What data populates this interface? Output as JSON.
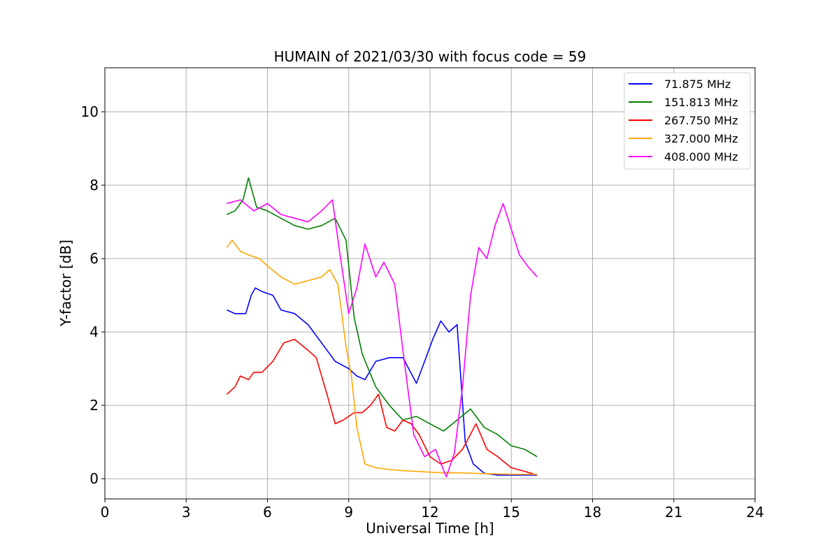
{
  "chart_data": {
    "type": "line",
    "title": "HUMAIN of 2021/03/30 with focus code = 59",
    "xlabel": "Universal Time [h]",
    "ylabel": "Y-factor [dB]",
    "xlim": [
      0,
      24
    ],
    "ylim": [
      -0.55,
      11.2
    ],
    "xticks": [
      0,
      3,
      6,
      9,
      12,
      15,
      18,
      21,
      24
    ],
    "yticks": [
      0,
      2,
      4,
      6,
      8,
      10
    ],
    "grid": true,
    "legend_position": "top-right",
    "series": [
      {
        "name": "  71.875 MHz",
        "color": "#0000ff",
        "x": [
          4.5,
          4.8,
          5.2,
          5.4,
          5.55,
          5.8,
          6.2,
          6.5,
          7.0,
          7.5,
          8.0,
          8.5,
          9.0,
          9.3,
          9.6,
          10.0,
          10.5,
          11.0,
          11.5,
          11.8,
          12.1,
          12.4,
          12.7,
          13.0,
          13.3,
          13.6,
          14.0,
          14.5,
          15.0,
          15.5,
          15.95
        ],
        "y": [
          4.6,
          4.5,
          4.5,
          5.0,
          5.2,
          5.1,
          5.0,
          4.6,
          4.5,
          4.2,
          3.7,
          3.2,
          3.0,
          2.8,
          2.7,
          3.2,
          3.3,
          3.3,
          2.6,
          3.2,
          3.8,
          4.3,
          4.0,
          4.2,
          1.0,
          0.4,
          0.15,
          0.1,
          0.1,
          0.1,
          0.1
        ]
      },
      {
        "name": "151.813 MHz",
        "color": "#008000",
        "x": [
          4.5,
          4.8,
          5.1,
          5.3,
          5.6,
          6.0,
          6.5,
          7.0,
          7.5,
          8.0,
          8.5,
          8.9,
          9.2,
          9.5,
          10.0,
          10.5,
          11.0,
          11.5,
          12.0,
          12.5,
          13.0,
          13.5,
          14.0,
          14.5,
          15.0,
          15.5,
          15.95
        ],
        "y": [
          7.2,
          7.3,
          7.6,
          8.2,
          7.4,
          7.3,
          7.1,
          6.9,
          6.8,
          6.9,
          7.1,
          6.5,
          4.4,
          3.4,
          2.5,
          2.0,
          1.6,
          1.7,
          1.5,
          1.3,
          1.6,
          1.9,
          1.4,
          1.2,
          0.9,
          0.8,
          0.6
        ]
      },
      {
        "name": "267.750 MHz",
        "color": "#ff0000",
        "x": [
          4.5,
          4.8,
          5.0,
          5.3,
          5.5,
          5.8,
          6.2,
          6.6,
          7.0,
          7.5,
          7.8,
          8.2,
          8.5,
          8.8,
          9.2,
          9.5,
          9.8,
          10.1,
          10.4,
          10.7,
          11.0,
          11.3,
          11.6,
          12.0,
          12.4,
          12.8,
          13.2,
          13.7,
          14.1,
          14.5,
          15.0,
          15.5,
          15.95
        ],
        "y": [
          2.3,
          2.5,
          2.8,
          2.7,
          2.9,
          2.9,
          3.2,
          3.7,
          3.8,
          3.5,
          3.3,
          2.3,
          1.5,
          1.6,
          1.8,
          1.8,
          2.0,
          2.3,
          1.4,
          1.3,
          1.6,
          1.5,
          1.2,
          0.6,
          0.4,
          0.5,
          0.8,
          1.5,
          0.8,
          0.6,
          0.3,
          0.2,
          0.1
        ]
      },
      {
        "name": "327.000 MHz",
        "color": "#ffa500",
        "x": [
          4.5,
          4.7,
          5.0,
          5.3,
          5.7,
          6.0,
          6.5,
          7.0,
          7.5,
          8.0,
          8.3,
          8.6,
          8.9,
          9.1,
          9.3,
          9.6,
          10.0,
          10.5,
          11.0,
          11.5,
          12.0,
          12.5,
          13.0,
          13.5,
          14.0,
          14.5,
          15.0,
          15.5,
          15.95
        ],
        "y": [
          6.3,
          6.5,
          6.2,
          6.1,
          6.0,
          5.8,
          5.5,
          5.3,
          5.4,
          5.5,
          5.7,
          5.3,
          3.6,
          2.8,
          1.4,
          0.4,
          0.3,
          0.25,
          0.22,
          0.2,
          0.18,
          0.16,
          0.16,
          0.15,
          0.14,
          0.13,
          0.12,
          0.12,
          0.12
        ]
      },
      {
        "name": "408.000 MHz",
        "color": "#ff00ff",
        "x": [
          4.5,
          5.0,
          5.5,
          6.0,
          6.5,
          7.0,
          7.5,
          8.0,
          8.4,
          8.7,
          9.0,
          9.3,
          9.6,
          10.0,
          10.3,
          10.7,
          11.0,
          11.4,
          11.8,
          12.2,
          12.6,
          12.9,
          13.2,
          13.5,
          13.8,
          14.1,
          14.4,
          14.7,
          15.0,
          15.3,
          15.6,
          15.95
        ],
        "y": [
          7.5,
          7.6,
          7.3,
          7.5,
          7.2,
          7.1,
          7.0,
          7.3,
          7.6,
          6.0,
          4.5,
          5.2,
          6.4,
          5.5,
          5.9,
          5.3,
          3.5,
          1.2,
          0.6,
          0.8,
          0.05,
          0.7,
          2.5,
          5.0,
          6.3,
          6.0,
          6.9,
          7.5,
          6.8,
          6.1,
          5.8,
          5.5
        ]
      }
    ]
  }
}
